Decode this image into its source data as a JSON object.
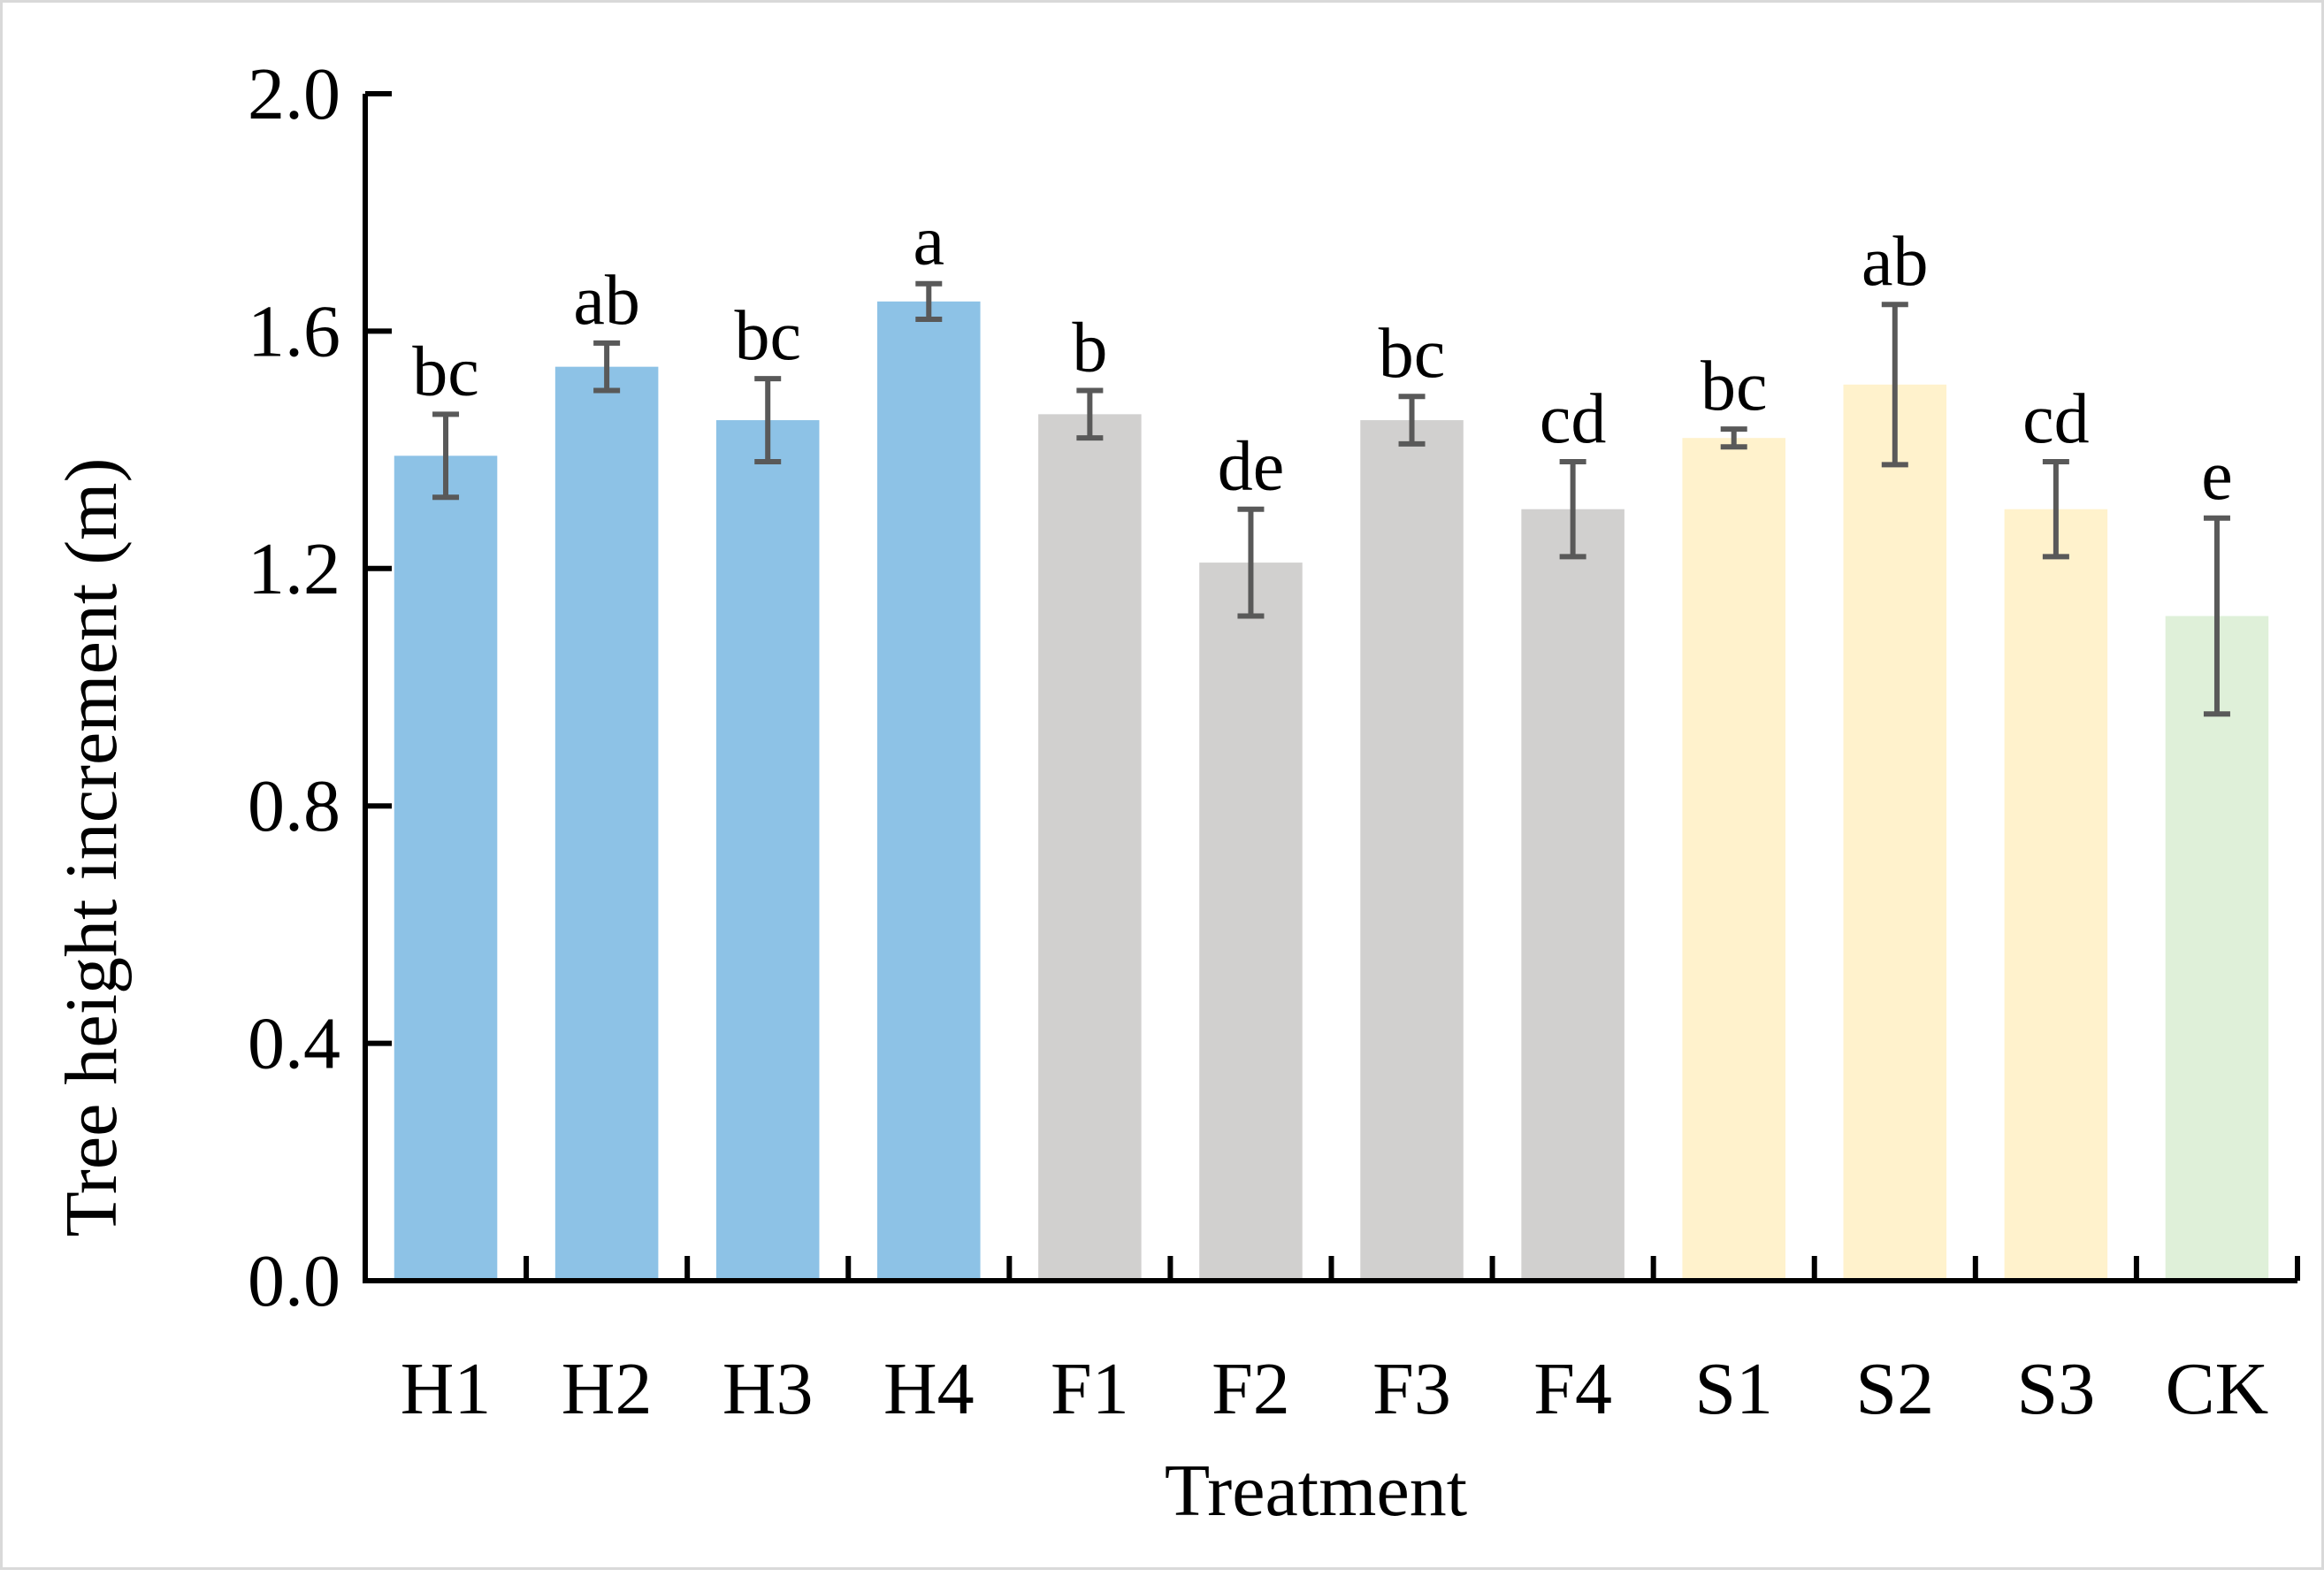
{
  "chart_data": {
    "type": "bar",
    "title": "",
    "xlabel": "Treatment",
    "ylabel": "Tree height increment (m)",
    "ylim": [
      0,
      2.0
    ],
    "yticks": [
      "0.0",
      "0.4",
      "0.8",
      "1.2",
      "1.6",
      "2.0"
    ],
    "ytick_values": [
      0,
      0.4,
      0.8,
      1.2,
      1.6,
      2.0
    ],
    "grid": false,
    "categories": [
      "H1",
      "H2",
      "H3",
      "H4",
      "F1",
      "F2",
      "F3",
      "F4",
      "S1",
      "S2",
      "S3",
      "CK"
    ],
    "values": [
      1.39,
      1.54,
      1.45,
      1.65,
      1.46,
      1.21,
      1.45,
      1.3,
      1.42,
      1.51,
      1.3,
      1.12
    ],
    "errors": [
      0.07,
      0.04,
      0.07,
      0.03,
      0.04,
      0.09,
      0.04,
      0.08,
      0.015,
      0.135,
      0.08,
      0.165
    ],
    "significance": [
      "bc",
      "ab",
      "bc",
      "a",
      "b",
      "de",
      "bc",
      "cd",
      "bc",
      "ab",
      "cd",
      "e"
    ],
    "groups": [
      "H",
      "H",
      "H",
      "H",
      "F",
      "F",
      "F",
      "F",
      "S",
      "S",
      "S",
      "CK"
    ],
    "group_colors": {
      "H": "#8dc2e6",
      "F": "#d1d0cf",
      "S": "#fff2cc",
      "CK": "#dff0d9"
    },
    "error_bar_color": "#595959",
    "axis_color": "#000000"
  }
}
